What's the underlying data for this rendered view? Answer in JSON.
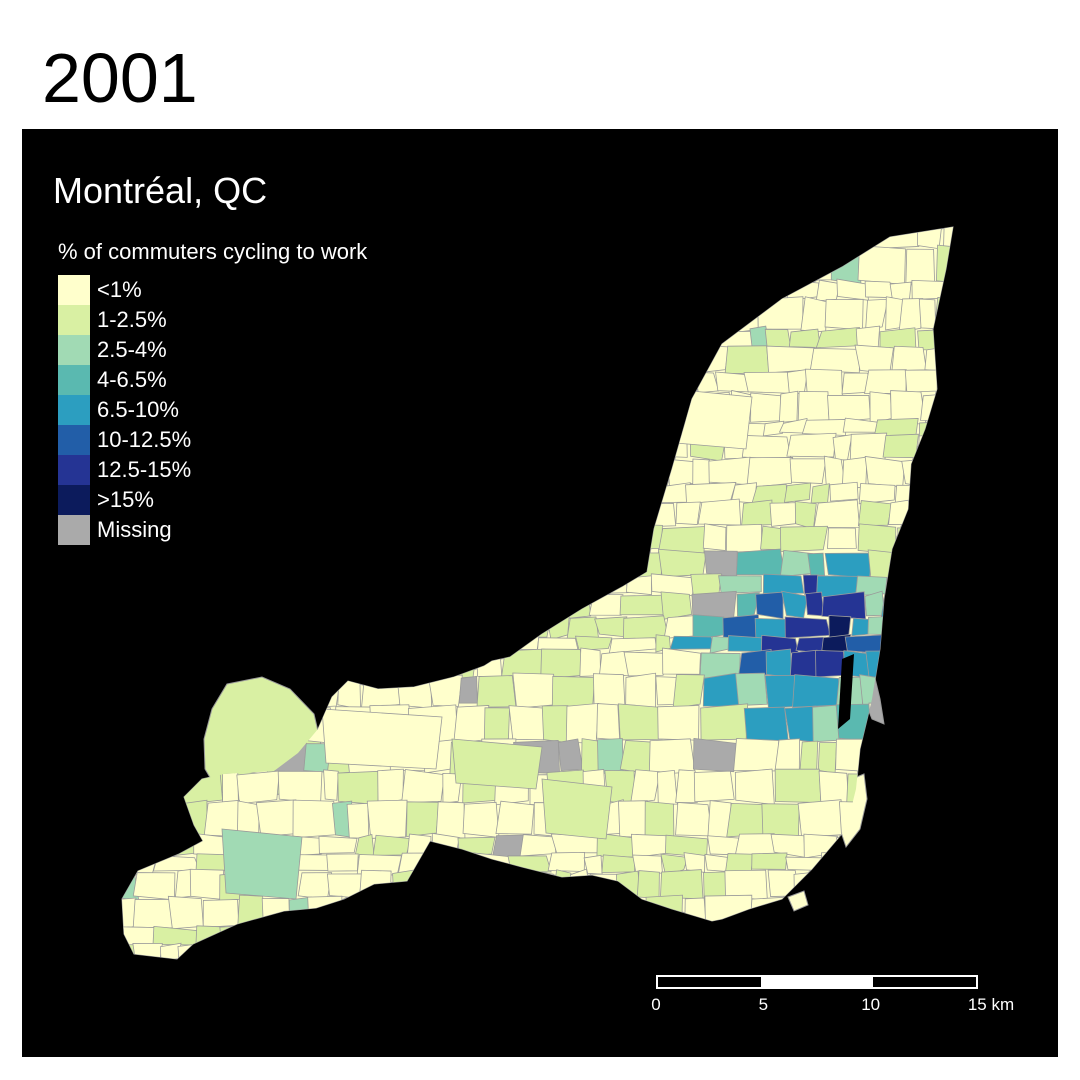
{
  "title": "2001",
  "map": {
    "city": "Montréal, QC",
    "background": "#000000",
    "tract_border_color": "#9a9a9a",
    "water_color": "#000000"
  },
  "legend": {
    "title": "% of commuters cycling to work",
    "items": [
      {
        "label": "<1%",
        "color": "#ffffcc"
      },
      {
        "label": "1-2.5%",
        "color": "#d9f0a3"
      },
      {
        "label": "2.5-4%",
        "color": "#a1dab4"
      },
      {
        "label": "4-6.5%",
        "color": "#5ab9b0"
      },
      {
        "label": "6.5-10%",
        "color": "#2c9ec0"
      },
      {
        "label": "10-12.5%",
        "color": "#225ea8"
      },
      {
        "label": "12.5-15%",
        "color": "#253494"
      },
      {
        "label": ">15%",
        "color": "#0c1b5c"
      },
      {
        "label": "Missing",
        "color": "#aaaaaa"
      }
    ]
  },
  "scale_bar": {
    "ticks": [
      {
        "label": "0",
        "km": 0
      },
      {
        "label": "5",
        "km": 5
      },
      {
        "label": "10",
        "km": 10
      },
      {
        "label": "15 km",
        "km": 15
      }
    ]
  }
}
